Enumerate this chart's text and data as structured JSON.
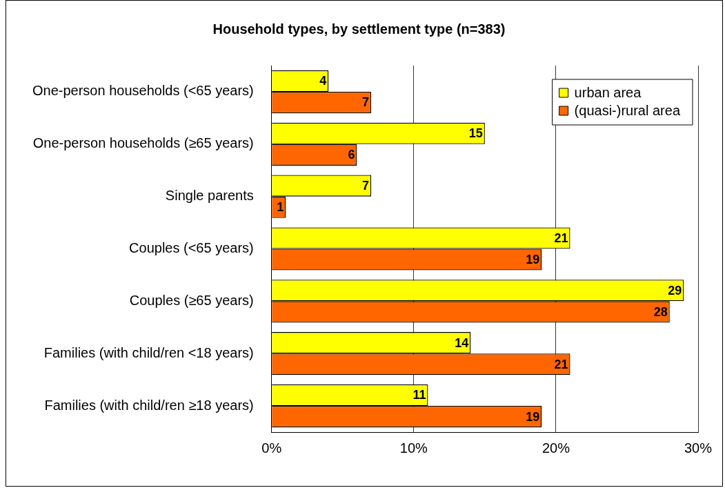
{
  "chart_data": {
    "type": "bar",
    "orientation": "horizontal",
    "title": "Household types, by settlement type (n=383)",
    "categories": [
      "One-person households (<65 years)",
      "One-person households (≥65 years)",
      "Single parents",
      "Couples (<65 years)",
      "Couples (≥65 years)",
      "Families (with child/ren <18 years)",
      "Families (with child/ren ≥18 years)"
    ],
    "series": [
      {
        "name": "urban area",
        "color": "#ffff00",
        "values": [
          4,
          15,
          7,
          21,
          29,
          14,
          11
        ]
      },
      {
        "name": "(quasi-)rural area",
        "color": "#ff6600",
        "values": [
          7,
          6,
          1,
          19,
          28,
          21,
          19
        ]
      }
    ],
    "xlim": [
      0,
      30
    ],
    "xticks": [
      {
        "value": 0,
        "label": "0%"
      },
      {
        "value": 10,
        "label": "10%"
      },
      {
        "value": 20,
        "label": "20%"
      },
      {
        "value": 30,
        "label": "30%"
      }
    ],
    "grid": "x",
    "legend": "top right",
    "data_labels": true
  }
}
